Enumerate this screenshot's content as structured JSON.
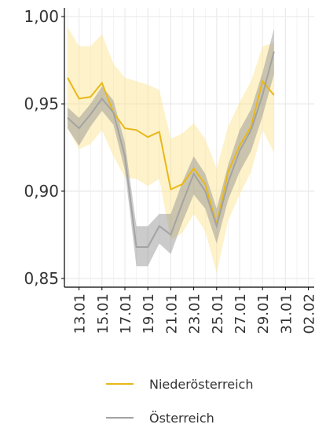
{
  "chart_data": {
    "type": "line",
    "categories": [
      null,
      "13.01",
      null,
      "15.01",
      null,
      "17.01",
      null,
      "19.01",
      null,
      "21.01",
      null,
      "23.01",
      null,
      "25.01",
      null,
      "27.01",
      null,
      "29.01",
      null,
      "31.01",
      null,
      "02.02"
    ],
    "series": [
      {
        "name": "Niederösterreich",
        "color": "#e8b81a",
        "band_color": "#fde38a",
        "values": [
          0.965,
          0.953,
          0.954,
          0.962,
          0.945,
          0.936,
          0.935,
          0.931,
          0.934,
          0.901,
          0.904,
          0.913,
          0.904,
          0.881,
          0.911,
          0.926,
          0.937,
          0.963,
          0.955,
          null,
          null,
          null
        ],
        "upper": [
          0.994,
          0.983,
          0.983,
          0.99,
          0.973,
          0.965,
          0.963,
          0.961,
          0.958,
          0.93,
          0.933,
          0.939,
          0.93,
          0.913,
          0.937,
          0.951,
          0.963,
          0.983,
          0.985,
          null,
          null,
          null
        ],
        "lower": [
          0.936,
          0.924,
          0.927,
          0.935,
          0.92,
          0.908,
          0.907,
          0.903,
          0.907,
          0.872,
          0.876,
          0.887,
          0.877,
          0.853,
          0.883,
          0.898,
          0.911,
          0.935,
          0.922,
          null,
          null,
          null
        ]
      },
      {
        "name": "Österreich",
        "color": "#a3a3a3",
        "band_color": "#8c8c8c",
        "values": [
          0.942,
          0.936,
          0.944,
          0.953,
          0.945,
          0.92,
          0.868,
          0.868,
          0.88,
          0.875,
          0.893,
          0.91,
          0.9,
          0.88,
          0.905,
          0.923,
          0.935,
          0.955,
          0.98,
          null,
          null,
          null
        ],
        "upper": [
          0.948,
          0.942,
          0.95,
          0.96,
          0.952,
          0.928,
          0.88,
          0.88,
          0.887,
          0.887,
          0.905,
          0.92,
          0.91,
          0.89,
          0.915,
          0.935,
          0.947,
          0.968,
          0.993,
          null,
          null,
          null
        ],
        "lower": [
          0.936,
          0.926,
          0.937,
          0.946,
          0.938,
          0.912,
          0.857,
          0.857,
          0.87,
          0.864,
          0.882,
          0.898,
          0.89,
          0.87,
          0.895,
          0.911,
          0.923,
          0.943,
          0.967,
          null,
          null,
          null
        ]
      }
    ],
    "ylim": [
      0.845,
      1.005
    ],
    "yticks": [
      {
        "value": 0.85,
        "label": "0,85"
      },
      {
        "value": 0.9,
        "label": "0,90"
      },
      {
        "value": 0.95,
        "label": "0,95"
      },
      {
        "value": 1.0,
        "label": "1,00"
      }
    ],
    "grid": true
  }
}
